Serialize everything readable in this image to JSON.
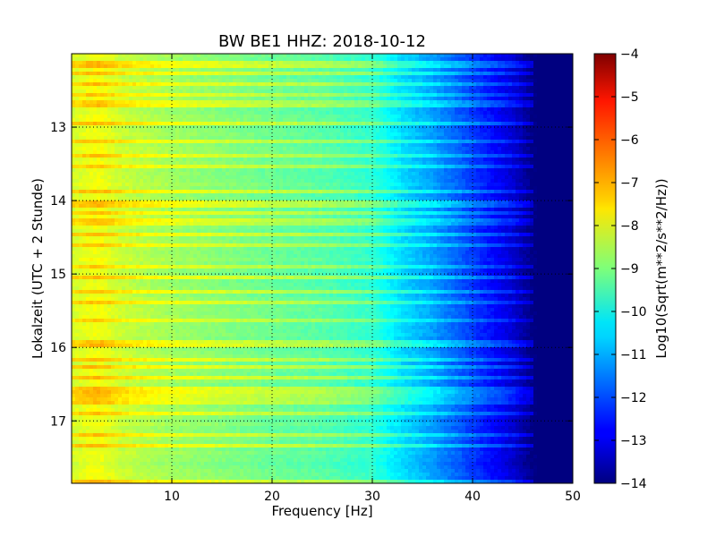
{
  "chart_data": {
    "type": "heatmap",
    "title": "BW BE1 HHZ: 2018-10-12",
    "xlabel": "Frequency [Hz]",
    "ylabel": "Lokalzeit (UTC + 2 Stunde)",
    "xlim": [
      0,
      50
    ],
    "ylim": [
      12.0,
      17.85
    ],
    "y_inverted": true,
    "x_ticks": [
      10,
      20,
      30,
      40,
      50
    ],
    "x_tick_labels": [
      "10",
      "20",
      "30",
      "40",
      "50"
    ],
    "y_ticks": [
      13,
      14,
      15,
      16,
      17
    ],
    "y_tick_labels": [
      "13",
      "14",
      "15",
      "16",
      "17"
    ],
    "grid": true,
    "colormap": "jet",
    "colorbar": {
      "label": "Log10(Sqrt(m**2/s**2/Hz))",
      "range": [
        -14,
        -4
      ],
      "ticks": [
        -4,
        -5,
        -6,
        -7,
        -8,
        -9,
        -10,
        -11,
        -12,
        -13,
        -14
      ],
      "tick_labels": [
        "−4",
        "−5",
        "−6",
        "−7",
        "−8",
        "−9",
        "−10",
        "−11",
        "−12",
        "−13",
        "−14"
      ]
    },
    "spectral_profile": {
      "frequency_hz": [
        0,
        2,
        3,
        5,
        10,
        20,
        25,
        30,
        33,
        36,
        40,
        44,
        46,
        50
      ],
      "log10_amplitude": [
        -8.2,
        -7.9,
        -7.9,
        -8.3,
        -8.7,
        -9.2,
        -9.4,
        -9.8,
        -10.6,
        -11.2,
        -12.2,
        -13.2,
        -14,
        -14
      ]
    },
    "bright_bands_hours": [
      12.15,
      12.28,
      12.42,
      12.55,
      12.68,
      12.95,
      13.18,
      13.38,
      13.55,
      13.88,
      14.05,
      14.15,
      14.25,
      14.32,
      14.45,
      14.6,
      14.9,
      15.05,
      15.25,
      15.4,
      15.65,
      15.95,
      16.15,
      16.28,
      16.4,
      16.55,
      16.62,
      16.68,
      16.75,
      16.9,
      17.2,
      17.35,
      17.85
    ]
  }
}
